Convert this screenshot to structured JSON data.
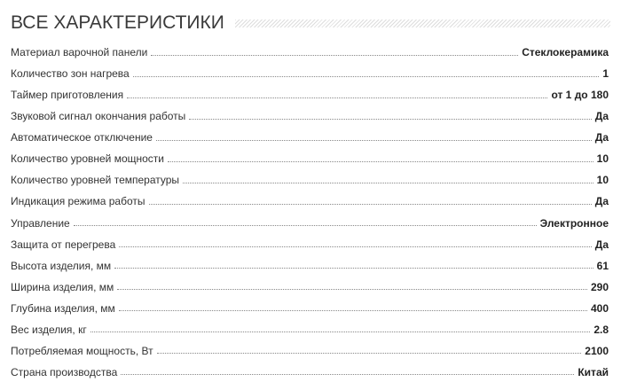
{
  "title": "ВСЕ ХАРАКТЕРИСТИКИ",
  "specs": [
    {
      "key": "Материал варочной панели",
      "value": "Стеклокерамика"
    },
    {
      "key": "Количество зон нагрева",
      "value": "1"
    },
    {
      "key": "Таймер приготовления",
      "value": "от 1 до 180"
    },
    {
      "key": "Звуковой сигнал окончания работы",
      "value": "Да"
    },
    {
      "key": "Автоматическое отключение",
      "value": "Да"
    },
    {
      "key": "Количество уровней мощности",
      "value": "10"
    },
    {
      "key": "Количество уровней температуры",
      "value": "10"
    },
    {
      "key": "Индикация режима работы",
      "value": "Да"
    },
    {
      "key": "Управление",
      "value": "Электронное"
    },
    {
      "key": "Защита от перегрева",
      "value": "Да"
    },
    {
      "key": "Высота изделия, мм",
      "value": "61"
    },
    {
      "key": "Ширина изделия, мм",
      "value": "290"
    },
    {
      "key": "Глубина изделия, мм",
      "value": "400"
    },
    {
      "key": "Вес изделия, кг",
      "value": "2.8"
    },
    {
      "key": "Потребляемая мощность, Вт",
      "value": "2100"
    },
    {
      "key": "Страна производства",
      "value": "Китай"
    }
  ]
}
